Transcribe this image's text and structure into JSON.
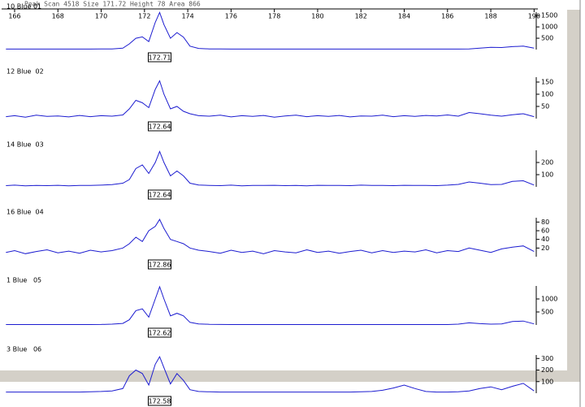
{
  "header": "Peak  Scan 4518  Size 171.72  Height 78  Area 866",
  "chart_data": [
    {
      "type": "line",
      "title": "10 Blue 01",
      "xlim": [
        165.4,
        190.1
      ],
      "xticks": [
        166,
        168,
        170,
        172,
        174,
        176,
        178,
        180,
        182,
        184,
        186,
        188,
        190
      ],
      "ylim": [
        0,
        1650
      ],
      "yticks": [
        500,
        1000,
        1500
      ],
      "annotation": "172.71",
      "x": [
        165.6,
        166,
        166.5,
        167,
        167.5,
        168,
        168.5,
        169,
        169.5,
        170,
        170.5,
        171,
        171.3,
        171.6,
        171.9,
        172.2,
        172.5,
        172.7,
        172.9,
        173.2,
        173.5,
        173.8,
        174.1,
        174.5,
        175,
        175.5,
        176,
        176.5,
        177,
        177.5,
        178,
        178.5,
        179,
        179.5,
        180,
        180.5,
        181,
        181.5,
        182,
        182.5,
        183,
        183.5,
        184,
        184.5,
        185,
        185.5,
        186,
        186.5,
        187,
        187.5,
        188,
        188.5,
        189,
        189.5,
        190
      ],
      "series": [
        {
          "color": "#1c1cd0",
          "values": [
            20,
            20,
            20,
            20,
            20,
            20,
            20,
            20,
            20,
            25,
            30,
            60,
            250,
            500,
            560,
            350,
            1200,
            1640,
            1100,
            500,
            750,
            550,
            150,
            50,
            30,
            25,
            20,
            20,
            20,
            20,
            20,
            20,
            20,
            20,
            20,
            20,
            20,
            20,
            20,
            20,
            20,
            20,
            20,
            20,
            20,
            20,
            20,
            20,
            30,
            60,
            100,
            90,
            130,
            150,
            60
          ]
        }
      ]
    },
    {
      "type": "line",
      "title": "12 Blue  02",
      "xlim": [
        165.4,
        190.1
      ],
      "ylim": [
        0,
        170
      ],
      "yticks": [
        50,
        100,
        150
      ],
      "annotation": "172.64",
      "x": [
        165.6,
        166,
        166.5,
        167,
        167.5,
        168,
        168.5,
        169,
        169.5,
        170,
        170.5,
        171,
        171.3,
        171.6,
        171.9,
        172.2,
        172.5,
        172.7,
        172.9,
        173.2,
        173.5,
        173.8,
        174.1,
        174.5,
        175,
        175.5,
        176,
        176.5,
        177,
        177.5,
        178,
        178.5,
        179,
        179.5,
        180,
        180.5,
        181,
        181.5,
        182,
        182.5,
        183,
        183.5,
        184,
        184.5,
        185,
        185.5,
        186,
        186.5,
        187,
        187.5,
        188,
        188.5,
        189,
        189.5,
        190
      ],
      "series": [
        {
          "color": "#1c1cd0",
          "values": [
            8,
            12,
            6,
            14,
            9,
            11,
            7,
            13,
            8,
            12,
            10,
            15,
            40,
            75,
            65,
            45,
            120,
            155,
            100,
            40,
            50,
            30,
            20,
            12,
            10,
            14,
            7,
            12,
            9,
            13,
            6,
            11,
            14,
            8,
            12,
            9,
            13,
            7,
            11,
            10,
            14,
            8,
            12,
            9,
            13,
            11,
            15,
            10,
            25,
            20,
            14,
            10,
            16,
            20,
            8
          ]
        }
      ]
    },
    {
      "type": "line",
      "title": "14 Blue  03",
      "xlim": [
        165.4,
        190.1
      ],
      "ylim": [
        0,
        300
      ],
      "yticks": [
        100,
        200
      ],
      "annotation": "172.64",
      "x": [
        165.6,
        166,
        166.5,
        167,
        167.5,
        168,
        168.5,
        169,
        169.5,
        170,
        170.5,
        171,
        171.3,
        171.6,
        171.9,
        172.2,
        172.5,
        172.7,
        172.9,
        173.2,
        173.5,
        173.8,
        174.1,
        174.5,
        175,
        175.5,
        176,
        176.5,
        177,
        177.5,
        178,
        178.5,
        179,
        179.5,
        180,
        180.5,
        181,
        181.5,
        182,
        182.5,
        183,
        183.5,
        184,
        184.5,
        185,
        185.5,
        186,
        186.5,
        187,
        187.5,
        188,
        188.5,
        189,
        189.5,
        190
      ],
      "series": [
        {
          "color": "#1c1cd0",
          "values": [
            10,
            14,
            8,
            12,
            10,
            13,
            9,
            12,
            11,
            14,
            18,
            30,
            60,
            150,
            180,
            110,
            200,
            290,
            200,
            90,
            130,
            90,
            30,
            15,
            12,
            10,
            14,
            9,
            12,
            11,
            13,
            10,
            12,
            9,
            13,
            11,
            12,
            10,
            14,
            11,
            12,
            10,
            13,
            11,
            12,
            10,
            14,
            20,
            40,
            30,
            18,
            20,
            45,
            50,
            15
          ]
        }
      ]
    },
    {
      "type": "line",
      "title": "16 Blue  04",
      "xlim": [
        165.4,
        190.1
      ],
      "ylim": [
        0,
        90
      ],
      "yticks": [
        20,
        40,
        60,
        80
      ],
      "annotation": "172.86",
      "x": [
        165.6,
        166,
        166.5,
        167,
        167.5,
        168,
        168.5,
        169,
        169.5,
        170,
        170.5,
        171,
        171.3,
        171.6,
        171.9,
        172.2,
        172.5,
        172.7,
        172.9,
        173.2,
        173.5,
        173.8,
        174.1,
        174.5,
        175,
        175.5,
        176,
        176.5,
        177,
        177.5,
        178,
        178.5,
        179,
        179.5,
        180,
        180.5,
        181,
        181.5,
        182,
        182.5,
        183,
        183.5,
        184,
        184.5,
        185,
        185.5,
        186,
        186.5,
        187,
        187.5,
        188,
        188.5,
        189,
        189.5,
        190
      ],
      "series": [
        {
          "color": "#1c1cd0",
          "values": [
            10,
            14,
            7,
            12,
            16,
            9,
            13,
            8,
            15,
            11,
            14,
            20,
            30,
            45,
            35,
            60,
            70,
            86,
            65,
            40,
            35,
            30,
            20,
            15,
            12,
            8,
            15,
            10,
            13,
            7,
            14,
            11,
            9,
            16,
            10,
            13,
            8,
            12,
            15,
            9,
            14,
            10,
            13,
            11,
            16,
            9,
            14,
            12,
            20,
            15,
            10,
            18,
            22,
            25,
            12
          ]
        }
      ]
    },
    {
      "type": "line",
      "title": "1 Blue   05",
      "xlim": [
        165.4,
        190.1
      ],
      "ylim": [
        0,
        1500
      ],
      "yticks": [
        500,
        1000
      ],
      "annotation": "172.62",
      "x": [
        165.6,
        166,
        166.5,
        167,
        167.5,
        168,
        168.5,
        169,
        169.5,
        170,
        170.5,
        171,
        171.3,
        171.6,
        171.9,
        172.2,
        172.5,
        172.7,
        172.9,
        173.2,
        173.5,
        173.8,
        174.1,
        174.5,
        175,
        175.5,
        176,
        176.5,
        177,
        177.5,
        178,
        178.5,
        179,
        179.5,
        180,
        180.5,
        181,
        181.5,
        182,
        182.5,
        183,
        183.5,
        184,
        184.5,
        185,
        185.5,
        186,
        186.5,
        187,
        187.5,
        188,
        188.5,
        189,
        189.5,
        190
      ],
      "series": [
        {
          "color": "#1c1cd0",
          "values": [
            15,
            15,
            15,
            15,
            15,
            15,
            15,
            15,
            15,
            20,
            30,
            60,
            200,
            550,
            620,
            300,
            1000,
            1470,
            1000,
            350,
            450,
            350,
            100,
            40,
            25,
            20,
            15,
            15,
            15,
            15,
            15,
            15,
            15,
            15,
            15,
            15,
            15,
            15,
            15,
            15,
            15,
            15,
            15,
            15,
            15,
            15,
            15,
            30,
            80,
            50,
            30,
            40,
            130,
            150,
            40
          ]
        }
      ]
    },
    {
      "type": "line",
      "title": "3 Blue   06",
      "xlim": [
        165.4,
        190.1
      ],
      "ylim": [
        0,
        330
      ],
      "yticks": [
        100,
        200,
        300
      ],
      "annotation": "172.58",
      "x": [
        165.6,
        166,
        166.5,
        167,
        167.5,
        168,
        168.5,
        169,
        169.5,
        170,
        170.5,
        171,
        171.3,
        171.6,
        171.9,
        172.2,
        172.5,
        172.7,
        172.9,
        173.2,
        173.5,
        173.8,
        174.1,
        174.5,
        175,
        175.5,
        176,
        176.5,
        177,
        177.5,
        178,
        178.5,
        179,
        179.5,
        180,
        180.5,
        181,
        181.5,
        182,
        182.5,
        183,
        183.5,
        184,
        184.5,
        185,
        185.5,
        186,
        186.5,
        187,
        187.5,
        188,
        188.5,
        189,
        189.5,
        190
      ],
      "series": [
        {
          "color": "#1c1cd0",
          "values": [
            10,
            10,
            10,
            10,
            10,
            10,
            10,
            10,
            12,
            15,
            20,
            40,
            150,
            200,
            170,
            70,
            250,
            315,
            220,
            80,
            170,
            110,
            30,
            15,
            12,
            10,
            10,
            10,
            10,
            10,
            10,
            10,
            10,
            10,
            10,
            10,
            10,
            10,
            12,
            15,
            25,
            45,
            70,
            40,
            15,
            10,
            10,
            12,
            20,
            40,
            55,
            30,
            60,
            85,
            20
          ]
        }
      ]
    }
  ]
}
